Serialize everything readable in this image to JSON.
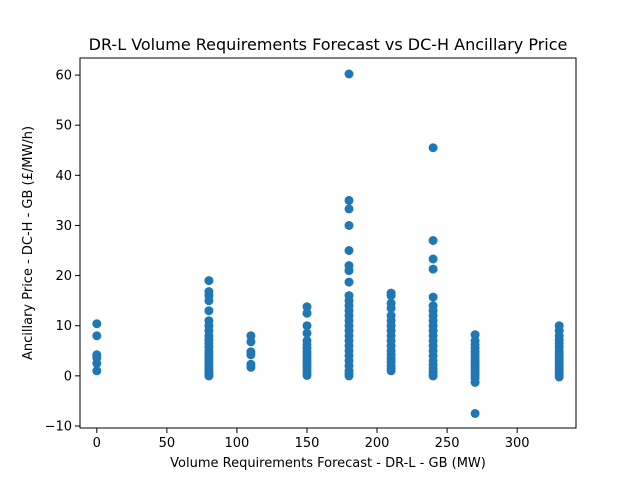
{
  "chart_data": {
    "type": "scatter",
    "title": "DR-L Volume Requirements Forecast vs DC-H Ancillary Price",
    "xlabel": "Volume Requirements Forecast - DR-L - GB (MW)",
    "ylabel": "Ancillary Price - DC-H - GB (£/MW/h)",
    "xlim": [
      -12,
      342
    ],
    "ylim": [
      -10.4,
      63.4
    ],
    "xticks": [
      0,
      50,
      100,
      150,
      200,
      250,
      300
    ],
    "yticks": [
      -10,
      0,
      10,
      20,
      30,
      40,
      50,
      60
    ],
    "grid": false,
    "marker_color": "#1f77b4",
    "points": [
      [
        0,
        10.4
      ],
      [
        0,
        8.0
      ],
      [
        0,
        4.2
      ],
      [
        0,
        3.6
      ],
      [
        0,
        2.5
      ],
      [
        0,
        1.0
      ],
      [
        80,
        19.0
      ],
      [
        80,
        16.8
      ],
      [
        80,
        16.0
      ],
      [
        80,
        15.0
      ],
      [
        80,
        13.0
      ],
      [
        80,
        11.0
      ],
      [
        80,
        10.0
      ],
      [
        80,
        9.0
      ],
      [
        80,
        8.0
      ],
      [
        80,
        7.2
      ],
      [
        80,
        6.5
      ],
      [
        80,
        5.8
      ],
      [
        80,
        5.0
      ],
      [
        80,
        4.5
      ],
      [
        80,
        4.0
      ],
      [
        80,
        3.5
      ],
      [
        80,
        3.0
      ],
      [
        80,
        2.5
      ],
      [
        80,
        2.0
      ],
      [
        80,
        1.5
      ],
      [
        80,
        1.0
      ],
      [
        80,
        0.6
      ],
      [
        80,
        0.3
      ],
      [
        80,
        0.1
      ],
      [
        80,
        0.0
      ],
      [
        110,
        8.0
      ],
      [
        110,
        6.8
      ],
      [
        110,
        4.8
      ],
      [
        110,
        4.2
      ],
      [
        110,
        2.3
      ],
      [
        110,
        1.7
      ],
      [
        150,
        13.8
      ],
      [
        150,
        12.5
      ],
      [
        150,
        10.0
      ],
      [
        150,
        8.5
      ],
      [
        150,
        7.0
      ],
      [
        150,
        6.2
      ],
      [
        150,
        5.5
      ],
      [
        150,
        4.8
      ],
      [
        150,
        4.2
      ],
      [
        150,
        3.6
      ],
      [
        150,
        3.0
      ],
      [
        150,
        2.4
      ],
      [
        150,
        1.8
      ],
      [
        150,
        1.2
      ],
      [
        150,
        0.6
      ],
      [
        150,
        0.1
      ],
      [
        180,
        60.2
      ],
      [
        180,
        35.0
      ],
      [
        180,
        33.3
      ],
      [
        180,
        30.0
      ],
      [
        180,
        25.0
      ],
      [
        180,
        22.0
      ],
      [
        180,
        21.0
      ],
      [
        180,
        18.7
      ],
      [
        180,
        16.0
      ],
      [
        180,
        15.0
      ],
      [
        180,
        14.0
      ],
      [
        180,
        13.0
      ],
      [
        180,
        12.0
      ],
      [
        180,
        11.0
      ],
      [
        180,
        10.0
      ],
      [
        180,
        9.0
      ],
      [
        180,
        8.0
      ],
      [
        180,
        7.0
      ],
      [
        180,
        6.0
      ],
      [
        180,
        5.0
      ],
      [
        180,
        4.0
      ],
      [
        180,
        3.0
      ],
      [
        180,
        2.0
      ],
      [
        180,
        1.0
      ],
      [
        180,
        0.5
      ],
      [
        180,
        0.0
      ],
      [
        210,
        16.5
      ],
      [
        210,
        16.0
      ],
      [
        210,
        14.5
      ],
      [
        210,
        13.5
      ],
      [
        210,
        12.0
      ],
      [
        210,
        11.0
      ],
      [
        210,
        10.0
      ],
      [
        210,
        9.0
      ],
      [
        210,
        8.0
      ],
      [
        210,
        7.0
      ],
      [
        210,
        6.0
      ],
      [
        210,
        5.0
      ],
      [
        210,
        4.2
      ],
      [
        210,
        3.5
      ],
      [
        210,
        2.8
      ],
      [
        210,
        2.0
      ],
      [
        210,
        1.5
      ],
      [
        210,
        1.0
      ],
      [
        240,
        45.5
      ],
      [
        240,
        27.0
      ],
      [
        240,
        23.3
      ],
      [
        240,
        21.3
      ],
      [
        240,
        15.7
      ],
      [
        240,
        14.0
      ],
      [
        240,
        13.0
      ],
      [
        240,
        12.0
      ],
      [
        240,
        11.0
      ],
      [
        240,
        10.0
      ],
      [
        240,
        9.0
      ],
      [
        240,
        8.0
      ],
      [
        240,
        7.0
      ],
      [
        240,
        6.0
      ],
      [
        240,
        5.0
      ],
      [
        240,
        4.0
      ],
      [
        240,
        3.0
      ],
      [
        240,
        2.2
      ],
      [
        240,
        1.5
      ],
      [
        240,
        0.8
      ],
      [
        240,
        0.3
      ],
      [
        240,
        0.0
      ],
      [
        270,
        8.2
      ],
      [
        270,
        7.0
      ],
      [
        270,
        6.2
      ],
      [
        270,
        5.5
      ],
      [
        270,
        4.8
      ],
      [
        270,
        4.2
      ],
      [
        270,
        3.6
      ],
      [
        270,
        3.0
      ],
      [
        270,
        2.5
      ],
      [
        270,
        2.0
      ],
      [
        270,
        1.5
      ],
      [
        270,
        1.0
      ],
      [
        270,
        0.5
      ],
      [
        270,
        0.0
      ],
      [
        270,
        -0.5
      ],
      [
        270,
        -1.3
      ],
      [
        270,
        -7.5
      ],
      [
        330,
        10.0
      ],
      [
        330,
        9.0
      ],
      [
        330,
        8.0
      ],
      [
        330,
        7.2
      ],
      [
        330,
        6.5
      ],
      [
        330,
        5.8
      ],
      [
        330,
        5.0
      ],
      [
        330,
        4.5
      ],
      [
        330,
        4.0
      ],
      [
        330,
        3.5
      ],
      [
        330,
        3.0
      ],
      [
        330,
        2.5
      ],
      [
        330,
        2.0
      ],
      [
        330,
        1.5
      ],
      [
        330,
        1.0
      ],
      [
        330,
        0.6
      ],
      [
        330,
        0.2
      ],
      [
        330,
        -0.2
      ]
    ]
  }
}
